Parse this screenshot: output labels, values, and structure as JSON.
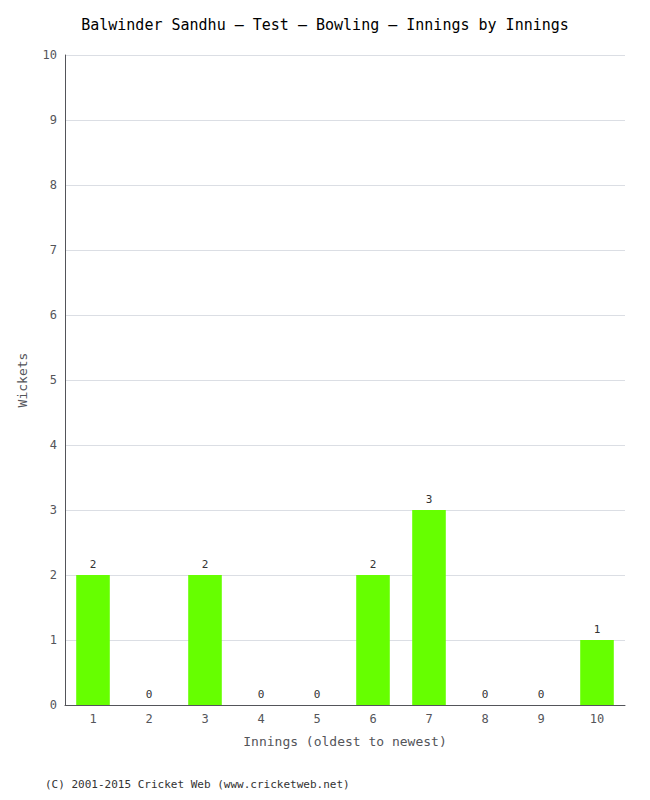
{
  "chart_data": {
    "type": "bar",
    "title": "Balwinder Sandhu – Test – Bowling – Innings by Innings",
    "xlabel": "Innings (oldest to newest)",
    "ylabel": "Wickets",
    "categories": [
      "1",
      "2",
      "3",
      "4",
      "5",
      "6",
      "7",
      "8",
      "9",
      "10"
    ],
    "values": [
      2,
      0,
      2,
      0,
      0,
      2,
      3,
      0,
      0,
      1
    ],
    "color": "#66ff00",
    "ylim": [
      0,
      10
    ],
    "yticks": [
      0,
      1,
      2,
      3,
      4,
      5,
      6,
      7,
      8,
      9,
      10
    ],
    "grid": true,
    "data_labels": true,
    "annotations": [
      "(C) 2001-2015 Cricket Web (www.cricketweb.net)"
    ]
  }
}
